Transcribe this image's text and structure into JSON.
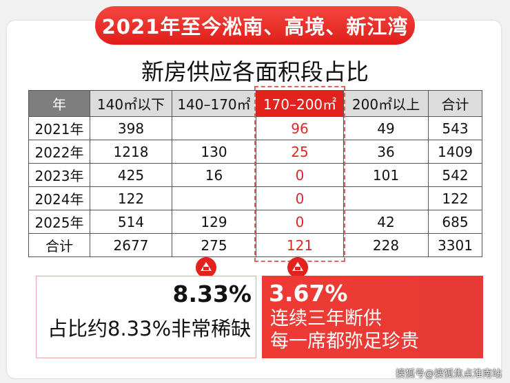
{
  "banner": "2021年至今淞南、高境、新江湾",
  "subtitle": "新房供应各面积段占比",
  "table": {
    "headers": [
      "年",
      "140㎡以下",
      "140–170㎡",
      "170–200㎡",
      "200㎡以上",
      "合计"
    ],
    "rows": [
      [
        "2021年",
        "398",
        "",
        "96",
        "49",
        "543"
      ],
      [
        "2022年",
        "1218",
        "130",
        "25",
        "36",
        "1409"
      ],
      [
        "2023年",
        "425",
        "16",
        "0",
        "101",
        "542"
      ],
      [
        "2024年",
        "122",
        "",
        "0",
        "",
        "122"
      ],
      [
        "2025年",
        "514",
        "129",
        "0",
        "42",
        "685"
      ],
      [
        "合计",
        "2677",
        "275",
        "121",
        "228",
        "3301"
      ]
    ]
  },
  "left_box": {
    "percent": "8.33%",
    "note": "占比约8.33%非常稀缺"
  },
  "right_box": {
    "percent": "3.67%",
    "note_line1": "连续三年断供",
    "note_line2": "每一席都弥足珍贵"
  },
  "watermark": "搜狐号@搜狐焦点淮南站",
  "colors": {
    "accent_red": "#e3211d",
    "header_gray": "#7e7e7e"
  }
}
